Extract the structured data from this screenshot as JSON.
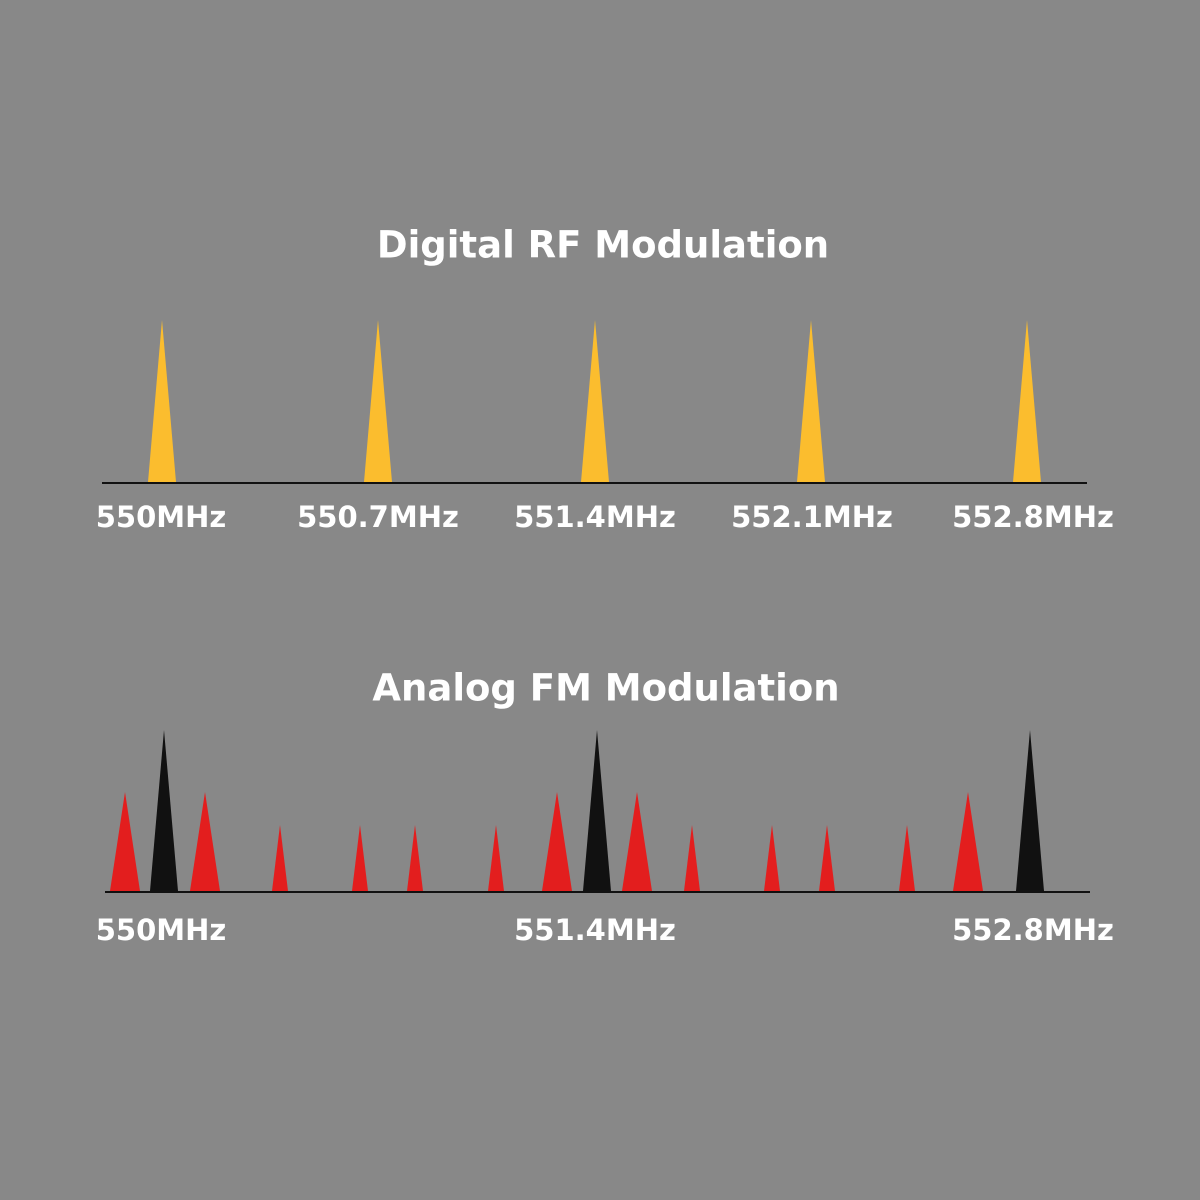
{
  "digital": {
    "title": "Digital RF Modulation",
    "labels": [
      "550MHz",
      "550.7MHz",
      "551.4MHz",
      "552.1MHz",
      "552.8MHz"
    ]
  },
  "analog": {
    "title": "Analog FM Modulation",
    "labels": [
      "550MHz",
      "551.4MHz",
      "552.8MHz"
    ]
  }
}
